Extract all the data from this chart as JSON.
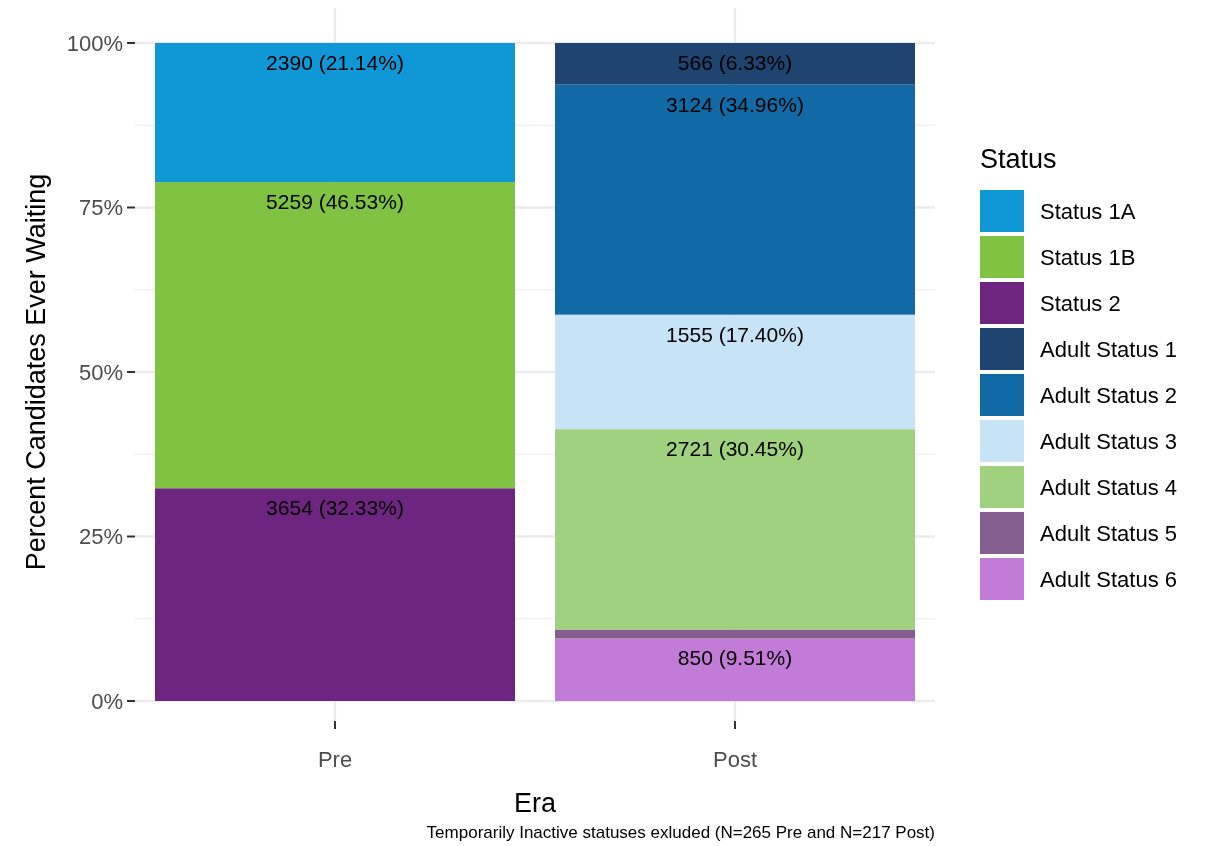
{
  "chart_data": {
    "type": "bar",
    "stacked": true,
    "xlabel": "Era",
    "ylabel": "Percent Candidates Ever Waiting",
    "legend_title": "Status",
    "legend": "right",
    "grid": true,
    "categories": [
      "Pre",
      "Post"
    ],
    "ylim": [
      0,
      100
    ],
    "yticks": [
      {
        "value": 0,
        "label": "0%"
      },
      {
        "value": 12.5,
        "label": null
      },
      {
        "value": 25,
        "label": "25%"
      },
      {
        "value": 37.5,
        "label": null
      },
      {
        "value": 50,
        "label": "50%"
      },
      {
        "value": 62.5,
        "label": null
      },
      {
        "value": 75,
        "label": "75%"
      },
      {
        "value": 87.5,
        "label": null
      },
      {
        "value": 100,
        "label": "100%"
      }
    ],
    "series": [
      {
        "name": "Adult Status 6",
        "color": "#c27bd7",
        "values": [
          null,
          9.51
        ],
        "value_labels": [
          null,
          "850 (9.51%)"
        ]
      },
      {
        "name": "Adult Status 5",
        "color": "#835e8e",
        "values": [
          null,
          1.35
        ],
        "value_labels": [
          null,
          null
        ]
      },
      {
        "name": "Adult Status 4",
        "color": "#a0d17e",
        "values": [
          null,
          30.45
        ],
        "value_labels": [
          null,
          "2721 (30.45%)"
        ]
      },
      {
        "name": "Adult Status 3",
        "color": "#c6e4f6",
        "values": [
          null,
          17.4
        ],
        "value_labels": [
          null,
          "1555 (17.40%)"
        ]
      },
      {
        "name": "Adult Status 2",
        "color": "#1169a5",
        "values": [
          null,
          34.96
        ],
        "value_labels": [
          null,
          "3124 (34.96%)"
        ]
      },
      {
        "name": "Adult Status 1",
        "color": "#1f4470",
        "values": [
          null,
          6.33
        ],
        "value_labels": [
          null,
          "566 (6.33%)"
        ]
      },
      {
        "name": "Status 2",
        "color": "#6d2580",
        "values": [
          32.33,
          null
        ],
        "value_labels": [
          "3654 (32.33%)",
          null
        ]
      },
      {
        "name": "Status 1B",
        "color": "#80c242",
        "values": [
          46.53,
          null
        ],
        "value_labels": [
          "5259 (46.53%)",
          null
        ]
      },
      {
        "name": "Status 1A",
        "color": "#1097d6",
        "values": [
          21.14,
          null
        ],
        "value_labels": [
          "2390 (21.14%)",
          null
        ]
      }
    ],
    "annotations": [
      "Temporarily Inactive statuses exluded (N=265 Pre and N=217 Post)"
    ]
  }
}
